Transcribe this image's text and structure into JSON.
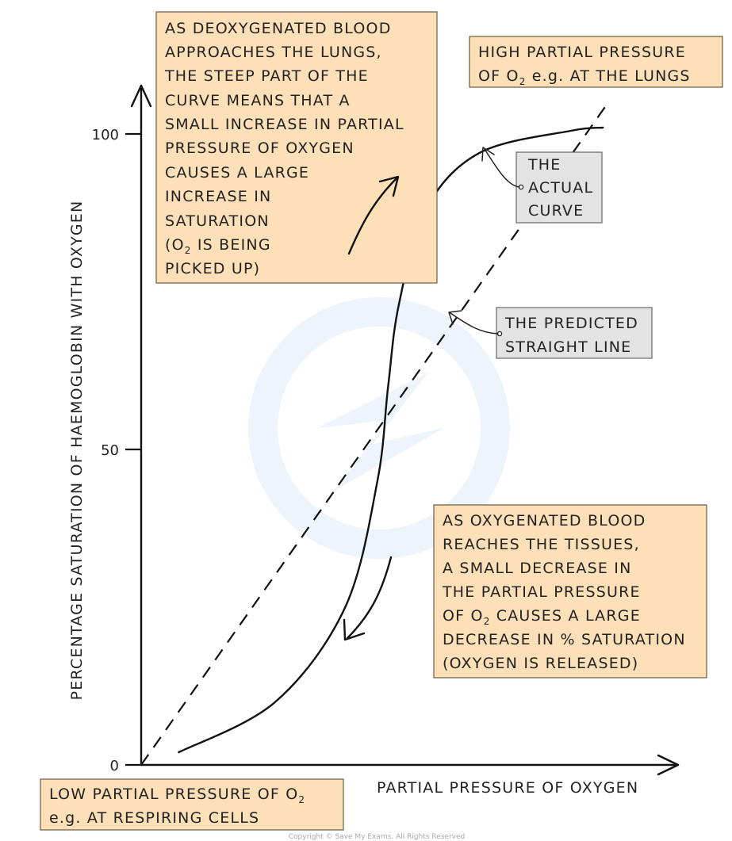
{
  "chart_data": {
    "type": "line",
    "xlabel": "PARTIAL PRESSURE OF OXYGEN",
    "ylabel": "PERCENTAGE SATURATION OF HAEMOGLOBIN WITH OXYGEN",
    "ylim": [
      0,
      100
    ],
    "yticks": [
      "0",
      "50",
      "100"
    ],
    "grid": false,
    "series": [
      {
        "role": "curve",
        "values": [
          [
            0.07,
            2
          ],
          [
            0.25,
            10
          ],
          [
            0.38,
            25
          ],
          [
            0.44,
            45
          ],
          [
            0.46,
            60
          ],
          [
            0.48,
            73
          ],
          [
            0.53,
            88
          ],
          [
            0.63,
            97
          ],
          [
            0.8,
            100.5
          ],
          [
            0.86,
            101
          ]
        ]
      },
      {
        "role": "straight",
        "values": [
          [
            0,
            0
          ],
          [
            0.87,
            105
          ]
        ]
      }
    ],
    "annotations": {
      "top_left": {
        "lines": [
          "AS DEOXYGENATED BLOOD",
          "APPROACHES THE LUNGS,",
          "THE STEEP PART OF THE",
          "CURVE MEANS THAT A",
          "SMALL INCREASE IN PARTIAL",
          "PRESSURE OF OXYGEN",
          "CAUSES A LARGE",
          "INCREASE IN",
          "SATURATION"
        ],
        "line10_pre": "(O",
        "line10_sub": "2",
        "line10_post": " IS BEING",
        "line11": "PICKED UP)"
      },
      "top_right": {
        "line1": "HIGH PARTIAL PRESSURE",
        "line2_pre": "OF O",
        "line2_sub": "2",
        "line2_post": "  e.g. AT THE LUNGS"
      },
      "actual_curve": {
        "lines": [
          "THE",
          "ACTUAL",
          "CURVE"
        ]
      },
      "predicted_line": {
        "lines": [
          "THE PREDICTED",
          "STRAIGHT LINE"
        ]
      },
      "bottom_right": {
        "line1": "AS OXYGENATED BLOOD",
        "line2": "REACHES THE TISSUES,",
        "line3": "A SMALL DECREASE IN",
        "line4": "THE PARTIAL PRESSURE",
        "line5_pre": "OF O",
        "line5_sub": "2",
        "line5_post": " CAUSES A LARGE",
        "line6": "DECREASE IN % SATURATION",
        "line7": "(OXYGEN IS RELEASED)"
      },
      "bottom_left": {
        "line1_pre": "LOW PARTIAL PRESSURE OF O",
        "line1_sub": "2",
        "line2": "e.g. AT RESPIRING CELLS"
      }
    }
  },
  "copyright": "Copyright © Save My Exams. All Rights Reserved"
}
